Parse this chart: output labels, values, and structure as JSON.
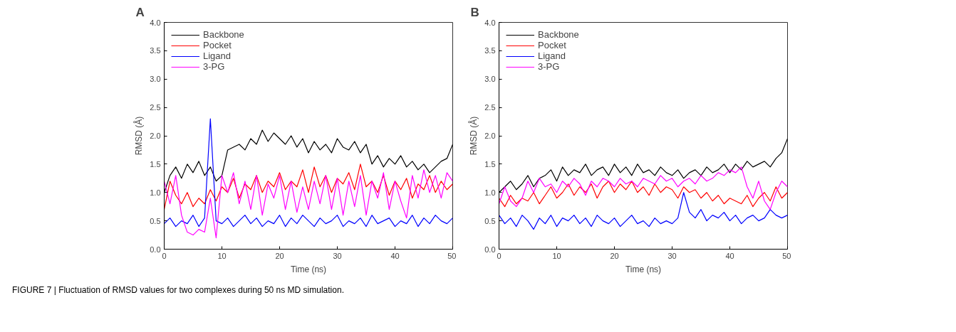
{
  "chart_data": [
    {
      "type": "line",
      "title": "A",
      "xlabel": "Time (ns)",
      "ylabel": "RMSD (Å)",
      "legend": "top left",
      "grid": false,
      "line_style": "solid",
      "xlim": [
        0,
        50
      ],
      "xticks": [
        0,
        10,
        20,
        30,
        40,
        50
      ],
      "ylim": [
        0,
        4
      ],
      "yticks": [
        {
          "value": 0,
          "label": "0.0"
        },
        {
          "value": 0.5,
          "label": "0.5"
        },
        {
          "value": 1,
          "label": "1.0"
        },
        {
          "value": 1.5,
          "label": "1.5"
        },
        {
          "value": 2,
          "label": "2.0"
        },
        {
          "value": 2.5,
          "label": "2.5"
        },
        {
          "value": 3,
          "label": "3.0"
        },
        {
          "value": 3.5,
          "label": "3.5"
        },
        {
          "value": 4,
          "label": "4.0"
        }
      ],
      "x": [
        0,
        1,
        2,
        3,
        4,
        5,
        6,
        7,
        8,
        9,
        10,
        11,
        12,
        13,
        14,
        15,
        16,
        17,
        18,
        19,
        20,
        21,
        22,
        23,
        24,
        25,
        26,
        27,
        28,
        29,
        30,
        31,
        32,
        33,
        34,
        35,
        36,
        37,
        38,
        39,
        40,
        41,
        42,
        43,
        44,
        45,
        46,
        47,
        48,
        49,
        50
      ],
      "series": [
        {
          "name": "Backbone",
          "color": "#000000",
          "values": [
            1.0,
            1.3,
            1.45,
            1.25,
            1.5,
            1.35,
            1.55,
            1.3,
            1.45,
            1.2,
            1.3,
            1.75,
            1.8,
            1.85,
            1.75,
            1.95,
            1.85,
            2.1,
            1.9,
            2.05,
            1.95,
            1.85,
            2.0,
            1.8,
            1.95,
            1.7,
            1.9,
            1.75,
            1.85,
            1.7,
            1.95,
            1.8,
            1.75,
            1.9,
            1.7,
            1.85,
            1.5,
            1.65,
            1.45,
            1.6,
            1.5,
            1.65,
            1.45,
            1.55,
            1.4,
            1.5,
            1.35,
            1.45,
            1.55,
            1.6,
            1.85
          ]
        },
        {
          "name": "Pocket",
          "color": "#ff0000",
          "values": [
            0.7,
            1.2,
            0.95,
            0.8,
            1.0,
            0.75,
            0.9,
            0.8,
            1.05,
            0.85,
            1.1,
            1.0,
            1.25,
            0.9,
            1.15,
            1.05,
            1.3,
            1.0,
            1.2,
            1.1,
            1.35,
            1.05,
            1.2,
            1.1,
            1.4,
            1.0,
            1.45,
            1.1,
            1.3,
            1.0,
            1.25,
            1.15,
            1.35,
            1.05,
            1.5,
            1.1,
            1.2,
            1.0,
            1.3,
            0.95,
            1.2,
            1.05,
            1.25,
            0.9,
            1.15,
            1.05,
            1.3,
            1.0,
            1.2,
            1.05,
            1.15
          ]
        },
        {
          "name": "Ligand",
          "color": "#0000ff",
          "values": [
            0.45,
            0.55,
            0.4,
            0.5,
            0.45,
            0.6,
            0.4,
            0.55,
            2.3,
            0.5,
            0.45,
            0.55,
            0.4,
            0.5,
            0.6,
            0.45,
            0.55,
            0.4,
            0.5,
            0.45,
            0.6,
            0.4,
            0.55,
            0.45,
            0.6,
            0.5,
            0.4,
            0.55,
            0.45,
            0.5,
            0.6,
            0.4,
            0.5,
            0.45,
            0.55,
            0.4,
            0.6,
            0.45,
            0.5,
            0.55,
            0.4,
            0.5,
            0.45,
            0.6,
            0.4,
            0.55,
            0.45,
            0.6,
            0.5,
            0.45,
            0.55
          ]
        },
        {
          "name": "3-PG",
          "color": "#ff00ff",
          "values": [
            1.2,
            0.8,
            1.3,
            0.6,
            0.3,
            0.25,
            0.35,
            0.3,
            0.9,
            0.2,
            1.3,
            1.0,
            1.35,
            0.8,
            1.2,
            0.7,
            1.3,
            0.6,
            1.15,
            0.9,
            1.3,
            0.7,
            1.2,
            0.65,
            1.1,
            0.7,
            1.2,
            0.8,
            1.3,
            0.7,
            1.25,
            0.6,
            1.2,
            0.75,
            1.3,
            0.6,
            1.2,
            0.9,
            1.35,
            0.7,
            1.2,
            0.85,
            0.55,
            1.3,
            0.9,
            1.4,
            1.0,
            1.3,
            0.9,
            1.35,
            1.2
          ]
        }
      ]
    },
    {
      "type": "line",
      "title": "B",
      "xlabel": "Time (ns)",
      "ylabel": "RMSD (Å)",
      "legend": "top left",
      "grid": false,
      "line_style": "solid",
      "xlim": [
        0,
        50
      ],
      "xticks": [
        0,
        10,
        20,
        30,
        40,
        50
      ],
      "ylim": [
        0,
        4
      ],
      "yticks": [
        {
          "value": 0,
          "label": "0.0"
        },
        {
          "value": 0.5,
          "label": "0.5"
        },
        {
          "value": 1,
          "label": "1.0"
        },
        {
          "value": 1.5,
          "label": "1.5"
        },
        {
          "value": 2,
          "label": "2.0"
        },
        {
          "value": 2.5,
          "label": "2.5"
        },
        {
          "value": 3,
          "label": "3.0"
        },
        {
          "value": 3.5,
          "label": "3.5"
        },
        {
          "value": 4,
          "label": "4.0"
        }
      ],
      "x": [
        0,
        1,
        2,
        3,
        4,
        5,
        6,
        7,
        8,
        9,
        10,
        11,
        12,
        13,
        14,
        15,
        16,
        17,
        18,
        19,
        20,
        21,
        22,
        23,
        24,
        25,
        26,
        27,
        28,
        29,
        30,
        31,
        32,
        33,
        34,
        35,
        36,
        37,
        38,
        39,
        40,
        41,
        42,
        43,
        44,
        45,
        46,
        47,
        48,
        49,
        50
      ],
      "series": [
        {
          "name": "Backbone",
          "color": "#000000",
          "values": [
            1.0,
            1.1,
            1.2,
            1.05,
            1.15,
            1.3,
            1.1,
            1.25,
            1.3,
            1.4,
            1.2,
            1.45,
            1.3,
            1.4,
            1.35,
            1.5,
            1.3,
            1.4,
            1.45,
            1.3,
            1.5,
            1.35,
            1.45,
            1.3,
            1.5,
            1.35,
            1.4,
            1.3,
            1.45,
            1.35,
            1.3,
            1.4,
            1.25,
            1.35,
            1.4,
            1.3,
            1.45,
            1.35,
            1.4,
            1.5,
            1.35,
            1.5,
            1.4,
            1.55,
            1.45,
            1.5,
            1.55,
            1.45,
            1.6,
            1.7,
            1.95
          ]
        },
        {
          "name": "Pocket",
          "color": "#ff0000",
          "values": [
            0.9,
            0.75,
            0.95,
            0.8,
            0.9,
            0.85,
            1.0,
            0.8,
            0.95,
            1.1,
            0.9,
            1.0,
            1.15,
            0.95,
            1.1,
            1.0,
            1.15,
            0.9,
            1.1,
            1.2,
            1.0,
            1.15,
            1.05,
            1.2,
            1.0,
            1.1,
            0.95,
            1.15,
            1.0,
            1.1,
            1.05,
            0.9,
            1.1,
            1.0,
            1.05,
            0.9,
            1.0,
            0.85,
            0.95,
            0.8,
            0.9,
            0.85,
            0.8,
            0.95,
            0.75,
            0.9,
            1.0,
            0.85,
            1.1,
            0.9,
            1.0
          ]
        },
        {
          "name": "Ligand",
          "color": "#0000ff",
          "values": [
            0.6,
            0.45,
            0.55,
            0.4,
            0.6,
            0.5,
            0.35,
            0.55,
            0.45,
            0.6,
            0.4,
            0.55,
            0.5,
            0.6,
            0.45,
            0.55,
            0.4,
            0.6,
            0.5,
            0.45,
            0.55,
            0.4,
            0.5,
            0.6,
            0.45,
            0.5,
            0.4,
            0.55,
            0.45,
            0.5,
            0.45,
            0.55,
            1.0,
            0.65,
            0.55,
            0.7,
            0.5,
            0.6,
            0.55,
            0.65,
            0.5,
            0.6,
            0.45,
            0.55,
            0.6,
            0.5,
            0.55,
            0.7,
            0.6,
            0.55,
            0.6
          ]
        },
        {
          "name": "3-PG",
          "color": "#ff00ff",
          "values": [
            0.8,
            1.1,
            0.85,
            0.75,
            0.9,
            1.2,
            1.0,
            1.25,
            1.1,
            1.15,
            1.0,
            1.2,
            1.1,
            1.25,
            1.15,
            0.95,
            1.2,
            1.1,
            1.25,
            1.2,
            1.1,
            1.25,
            1.15,
            1.2,
            1.1,
            1.25,
            1.2,
            1.15,
            1.3,
            1.2,
            1.25,
            1.1,
            1.2,
            1.25,
            1.15,
            1.3,
            1.2,
            1.25,
            1.35,
            1.3,
            1.4,
            1.35,
            1.45,
            1.1,
            0.9,
            1.2,
            0.85,
            0.7,
            1.0,
            1.2,
            1.1
          ]
        }
      ],
      "annotations": [
        "FIGURE 7 | Fluctuation of RMSD values for two complexes during 50 ns MD simulation."
      ]
    }
  ]
}
